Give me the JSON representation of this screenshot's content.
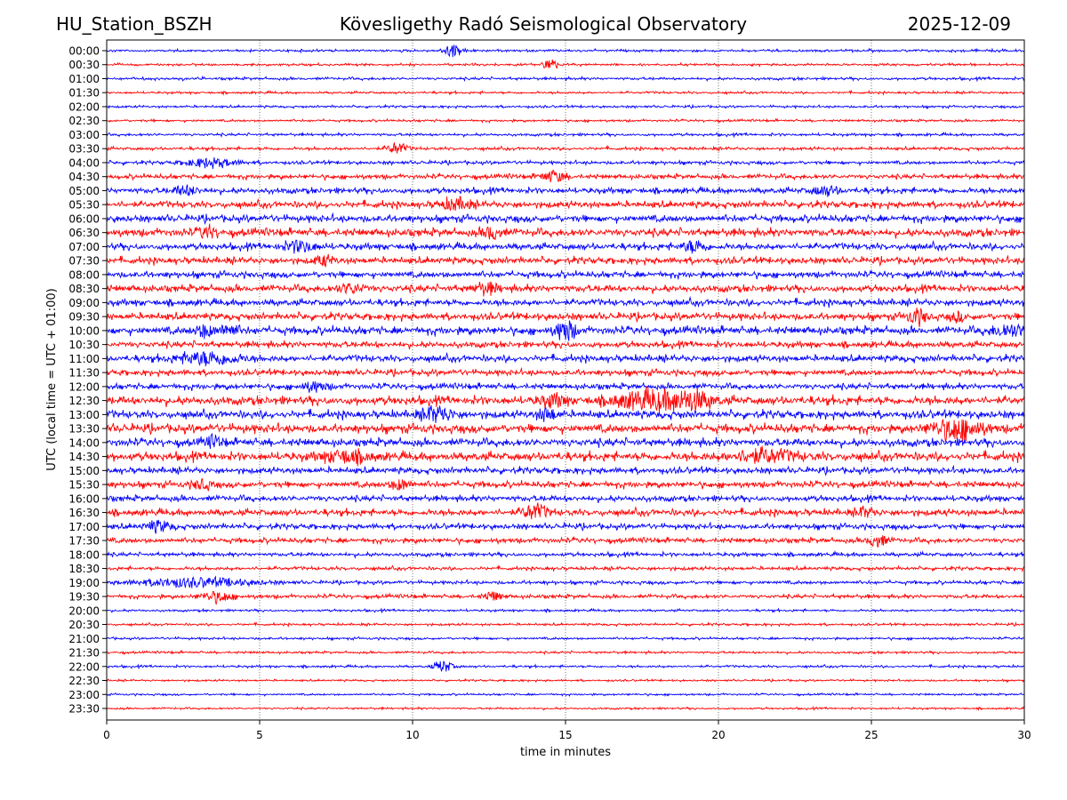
{
  "header": {
    "station": "HU_Station_BSZH",
    "observatory": "Kövesligethy Radó Seismological Observatory",
    "date": "2025-12-09"
  },
  "chart_data": {
    "type": "line",
    "subtype": "helicorder",
    "xlabel": "time in minutes",
    "ylabel": "UTC (local time = UTC + 01:00)",
    "xlim": [
      0,
      30
    ],
    "xticks": [
      "0",
      "5",
      "10",
      "15",
      "20",
      "25",
      "30"
    ],
    "grid": "vertical dotted at 5-minute ticks",
    "colors": [
      "#0000ff",
      "#ff0000"
    ],
    "rows": [
      "00:00",
      "00:30",
      "01:00",
      "01:30",
      "02:00",
      "02:30",
      "03:00",
      "03:30",
      "04:00",
      "04:30",
      "05:00",
      "05:30",
      "06:00",
      "06:30",
      "07:00",
      "07:30",
      "08:00",
      "08:30",
      "09:00",
      "09:30",
      "10:00",
      "10:30",
      "11:00",
      "11:30",
      "12:00",
      "12:30",
      "13:00",
      "13:30",
      "14:00",
      "14:30",
      "15:00",
      "15:30",
      "16:00",
      "16:30",
      "17:00",
      "17:30",
      "18:00",
      "18:30",
      "19:00",
      "19:30",
      "20:00",
      "20:30",
      "21:00",
      "21:30",
      "22:00",
      "22:30",
      "23:00",
      "23:30"
    ],
    "noise_level": [
      0.06,
      0.06,
      0.07,
      0.06,
      0.06,
      0.06,
      0.07,
      0.08,
      0.09,
      0.12,
      0.15,
      0.17,
      0.18,
      0.2,
      0.17,
      0.17,
      0.16,
      0.18,
      0.17,
      0.18,
      0.2,
      0.16,
      0.17,
      0.15,
      0.15,
      0.22,
      0.2,
      0.22,
      0.2,
      0.22,
      0.16,
      0.16,
      0.15,
      0.17,
      0.14,
      0.13,
      0.1,
      0.09,
      0.09,
      0.1,
      0.06,
      0.06,
      0.06,
      0.06,
      0.06,
      0.05,
      0.05,
      0.05
    ],
    "events": [
      [
        0,
        11.3,
        0.45,
        0.3
      ],
      [
        1,
        14.5,
        0.5,
        0.2
      ],
      [
        7,
        9.5,
        0.4,
        0.3
      ],
      [
        8,
        3.4,
        0.3,
        0.8
      ],
      [
        9,
        14.6,
        0.35,
        0.4
      ],
      [
        10,
        2.6,
        0.3,
        0.4
      ],
      [
        10,
        23.5,
        0.3,
        0.4
      ],
      [
        11,
        11.4,
        0.35,
        0.5
      ],
      [
        13,
        12.6,
        0.4,
        0.3
      ],
      [
        13,
        3.3,
        0.35,
        0.3
      ],
      [
        14,
        6.3,
        0.35,
        0.5
      ],
      [
        14,
        19.2,
        0.35,
        0.4
      ],
      [
        15,
        7.1,
        0.3,
        0.3
      ],
      [
        17,
        12.4,
        0.35,
        0.4
      ],
      [
        17,
        8.0,
        0.3,
        0.4
      ],
      [
        19,
        26.5,
        0.5,
        0.3
      ],
      [
        19,
        27.8,
        0.3,
        0.2
      ],
      [
        20,
        15.0,
        0.75,
        0.3
      ],
      [
        20,
        3.2,
        0.4,
        0.3
      ],
      [
        20,
        4.0,
        0.4,
        0.3
      ],
      [
        20,
        29.5,
        0.35,
        0.6
      ],
      [
        22,
        3.3,
        0.4,
        1.0
      ],
      [
        24,
        6.8,
        0.3,
        0.4
      ],
      [
        25,
        17.8,
        0.6,
        1.2
      ],
      [
        25,
        19.2,
        0.5,
        0.6
      ],
      [
        25,
        14.6,
        0.4,
        0.4
      ],
      [
        26,
        10.8,
        0.5,
        0.5
      ],
      [
        26,
        14.4,
        0.4,
        0.3
      ],
      [
        27,
        27.8,
        0.7,
        0.8
      ],
      [
        28,
        3.5,
        0.35,
        0.3
      ],
      [
        29,
        7.8,
        0.35,
        0.8
      ],
      [
        29,
        21.5,
        0.4,
        1.0
      ],
      [
        31,
        9.6,
        0.35,
        0.3
      ],
      [
        31,
        3.1,
        0.3,
        0.3
      ],
      [
        33,
        14.0,
        0.5,
        0.4
      ],
      [
        33,
        24.8,
        0.3,
        0.3
      ],
      [
        34,
        1.7,
        0.35,
        0.4
      ],
      [
        35,
        25.2,
        0.4,
        0.3
      ],
      [
        38,
        2.9,
        0.3,
        1.8
      ],
      [
        39,
        3.6,
        0.35,
        0.5
      ],
      [
        39,
        12.6,
        0.3,
        0.3
      ],
      [
        44,
        11.0,
        0.4,
        0.3
      ]
    ]
  }
}
